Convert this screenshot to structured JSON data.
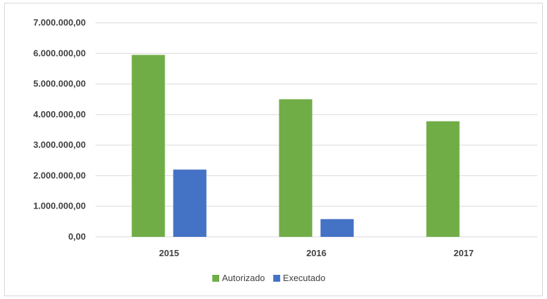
{
  "chart_data": {
    "type": "bar",
    "categories": [
      "2015",
      "2016",
      "2017"
    ],
    "series": [
      {
        "name": "Autorizado",
        "color": "#70ad47",
        "values": [
          5950000,
          4500000,
          3780000
        ]
      },
      {
        "name": "Executado",
        "color": "#4472c4",
        "values": [
          2200000,
          580000,
          0
        ]
      }
    ],
    "ylim": [
      0,
      7000000
    ],
    "yticks": [
      {
        "value": 0,
        "label": "0,00"
      },
      {
        "value": 1000000,
        "label": "1.000.000,00"
      },
      {
        "value": 2000000,
        "label": "2.000.000,00"
      },
      {
        "value": 3000000,
        "label": "3.000.000,00"
      },
      {
        "value": 4000000,
        "label": "4.000.000,00"
      },
      {
        "value": 5000000,
        "label": "5.000.000,00"
      },
      {
        "value": 6000000,
        "label": "6.000.000,00"
      },
      {
        "value": 7000000,
        "label": "7.000.000,00"
      }
    ],
    "grid": true,
    "legend": "bottom"
  }
}
